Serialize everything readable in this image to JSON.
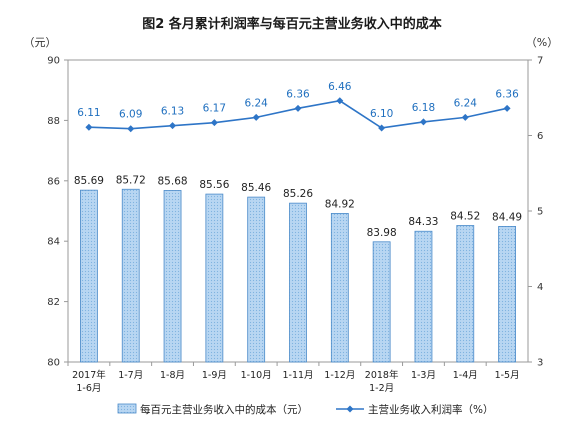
{
  "chart_data": {
    "type": "bar+line",
    "title": "图2  各月累计利润率与每百元主营业务收入中的成本",
    "y_left_unit": "（元）",
    "y_right_unit": "（%）",
    "y_left_range": [
      80,
      90
    ],
    "y_left_ticks": [
      "80",
      "82",
      "84",
      "86",
      "88",
      "90"
    ],
    "y_right_range": [
      3,
      7
    ],
    "y_right_ticks": [
      "3",
      "4",
      "5",
      "6",
      "7"
    ],
    "categories": [
      [
        "2017年",
        "1-6月"
      ],
      [
        "1-7月"
      ],
      [
        "1-8月"
      ],
      [
        "1-9月"
      ],
      [
        "1-10月"
      ],
      [
        "1-11月"
      ],
      [
        "1-12月"
      ],
      [
        "2018年",
        "1-2月"
      ],
      [
        "1-3月"
      ],
      [
        "1-4月"
      ],
      [
        "1-5月"
      ]
    ],
    "series": [
      {
        "name": "每百元主营业务收入中的成本（元）",
        "type": "bar",
        "axis": "left",
        "color": "#a9cdf0",
        "values": [
          85.69,
          85.72,
          85.68,
          85.56,
          85.46,
          85.26,
          84.92,
          83.98,
          84.33,
          84.52,
          84.49
        ],
        "labels": [
          "85.69",
          "85.72",
          "85.68",
          "85.56",
          "85.46",
          "85.26",
          "84.92",
          "83.98",
          "84.33",
          "84.52",
          "84.49"
        ]
      },
      {
        "name": "主营业务收入利润率（%）",
        "type": "line",
        "axis": "right",
        "color": "#2e75c7",
        "values": [
          6.11,
          6.09,
          6.13,
          6.17,
          6.24,
          6.36,
          6.46,
          6.1,
          6.18,
          6.24,
          6.36
        ],
        "labels": [
          "6.11",
          "6.09",
          "6.13",
          "6.17",
          "6.24",
          "6.36",
          "6.46",
          "6.10",
          "6.18",
          "6.24",
          "6.36"
        ]
      }
    ],
    "grid": false,
    "legend_position": "bottom"
  }
}
